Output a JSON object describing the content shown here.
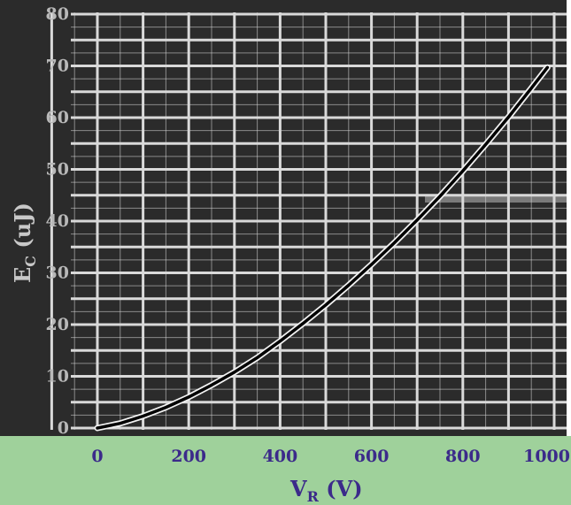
{
  "chart_data": {
    "type": "line",
    "title": "",
    "xlabel": "V",
    "xlabel_sub": "R",
    "xlabel_unit": " (V)",
    "ylabel": "E",
    "ylabel_sub": "C",
    "ylabel_unit": " (uJ)",
    "xlim": [
      0,
      1000
    ],
    "ylim": [
      0,
      80
    ],
    "x_ticks": [
      "0",
      "200",
      "400",
      "600",
      "800",
      "1000"
    ],
    "y_ticks": [
      "0",
      "10",
      "20",
      "30",
      "40",
      "50",
      "60",
      "70",
      "80"
    ],
    "grid": true,
    "series": [
      {
        "x": [
          0,
          50,
          100,
          150,
          200,
          250,
          300,
          350,
          400,
          450,
          500,
          550,
          600,
          650,
          700,
          750,
          800,
          850,
          900,
          950,
          985
        ],
        "y": [
          0,
          0.9,
          2.3,
          4.0,
          6.0,
          8.3,
          10.8,
          13.6,
          16.8,
          20.2,
          23.8,
          27.6,
          31.6,
          35.8,
          40.2,
          44.8,
          49.7,
          54.8,
          60.1,
          65.7,
          69.7
        ],
        "color": "#000000"
      }
    ],
    "colors": {
      "plot_bg": "#2b2b2b",
      "grid": "#d9d9d9",
      "axis_band": "#9fd19b",
      "left_band": "#2b2b2b"
    }
  }
}
